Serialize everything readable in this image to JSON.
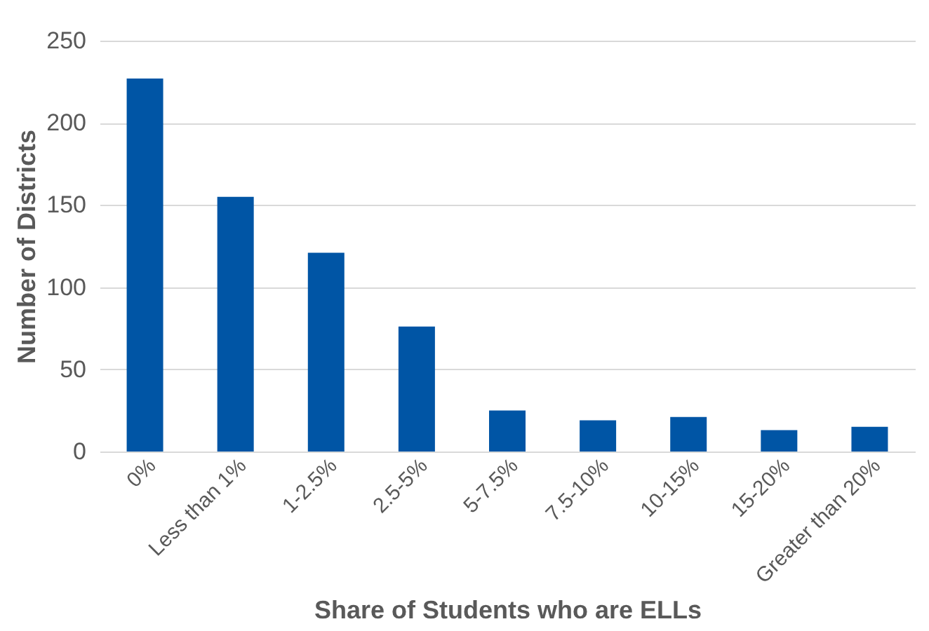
{
  "chart_data": {
    "type": "bar",
    "xlabel": "Share of Students who are ELLs",
    "ylabel": "Number of Districts",
    "categories": [
      "0%",
      "Less than 1%",
      "1-2.5%",
      "2.5-5%",
      "5-7.5%",
      "7.5-10%",
      "10-15%",
      "15-20%",
      "Greater than 20%"
    ],
    "values": [
      227,
      155,
      121,
      76,
      25,
      19,
      21,
      13,
      15
    ],
    "color": "#0055a5",
    "ylim": [
      0,
      250
    ],
    "yticks": [
      0,
      50,
      100,
      150,
      200,
      250
    ],
    "grid": "y"
  }
}
